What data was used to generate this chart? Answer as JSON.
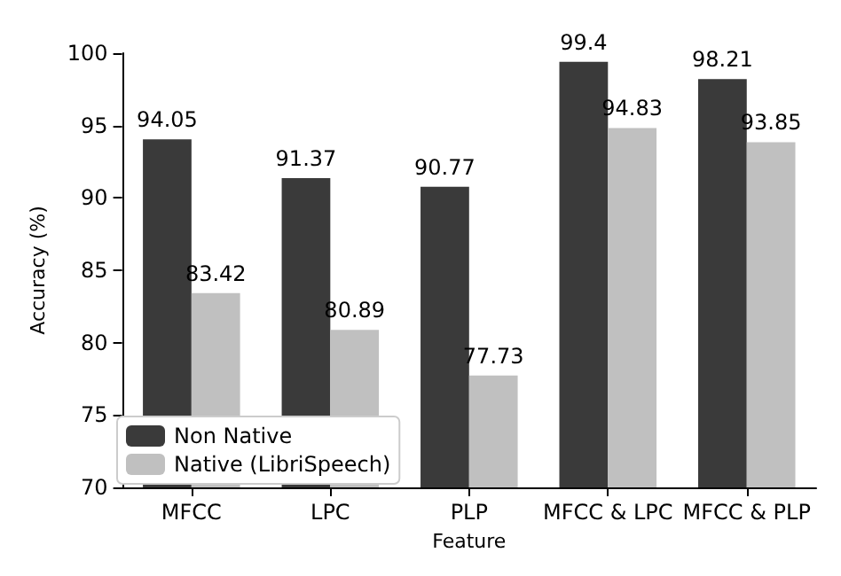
{
  "chart_data": {
    "type": "bar",
    "xlabel": "Feature",
    "ylabel": "Accuracy (%)",
    "categories": [
      "MFCC",
      "LPC",
      "PLP",
      "MFCC & LPC",
      "MFCC & PLP"
    ],
    "series": [
      {
        "name": "Non Native",
        "color": "#3a3a3a",
        "values": [
          94.05,
          91.37,
          90.77,
          99.4,
          98.21
        ]
      },
      {
        "name": "Native (LibriSpeech)",
        "color": "#c0c0c0",
        "values": [
          83.42,
          80.89,
          77.73,
          94.83,
          93.85
        ]
      }
    ],
    "ylim": [
      70,
      100
    ],
    "yticks": [
      70,
      75,
      80,
      85,
      90,
      95,
      100
    ],
    "data_labels": true,
    "legend": "bottom left",
    "grid": false
  }
}
